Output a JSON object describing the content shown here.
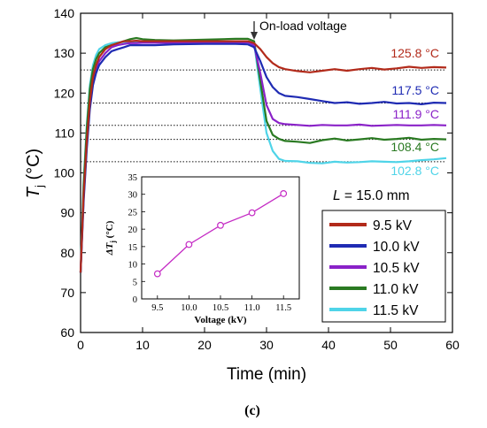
{
  "chart_data": [
    {
      "type": "line",
      "title": "",
      "xlabel": "Time (min)",
      "ylabel_main": "T",
      "ylabel_sub": "j",
      "ylabel_unit": " (°C)",
      "xlim": [
        0,
        60
      ],
      "ylim": [
        60,
        140
      ],
      "x_ticks": [
        0,
        10,
        20,
        30,
        40,
        50,
        60
      ],
      "y_ticks": [
        60,
        70,
        80,
        90,
        100,
        110,
        120,
        130,
        140
      ],
      "grid": false,
      "annotation_arrow": "On-load voltage",
      "annotation_arrow_x": 28,
      "length_label_prefix": "L",
      "length_label_value": " = 15.0 mm",
      "legend_position": "lower-right",
      "series": [
        {
          "name": "9.5 kV",
          "color": "#b22a1a",
          "steady_label": "125.8 °C",
          "steady_value": 125.8,
          "x": [
            0,
            0.5,
            1,
            1.5,
            2,
            2.5,
            3,
            4,
            5,
            6,
            7,
            8,
            9,
            10,
            12,
            15,
            20,
            25,
            27,
            28,
            29,
            30,
            31,
            32,
            33,
            35,
            37,
            39,
            41,
            43,
            45,
            47,
            49,
            51,
            53,
            55,
            57,
            59
          ],
          "y": [
            75,
            95,
            108,
            118,
            124,
            127,
            129,
            131,
            132,
            132.5,
            133,
            133,
            133.1,
            133,
            133,
            133,
            133,
            133,
            133,
            132.5,
            131,
            129,
            127.5,
            126.5,
            126,
            125.5,
            125.2,
            125.6,
            126,
            125.6,
            126,
            126.3,
            125.9,
            126.2,
            126.6,
            126.3,
            126.5,
            126.4
          ]
        },
        {
          "name": "10.0 kV",
          "color": "#1f2bb3",
          "steady_label": "117.5 °C",
          "steady_value": 117.5,
          "x": [
            0,
            0.5,
            1,
            1.5,
            2,
            2.5,
            3,
            4,
            5,
            6,
            7,
            8,
            9,
            10,
            12,
            15,
            20,
            25,
            27,
            28,
            29,
            30,
            31,
            32,
            33,
            35,
            37,
            39,
            41,
            43,
            45,
            47,
            49,
            51,
            53,
            55,
            57,
            59
          ],
          "y": [
            75,
            93,
            106,
            116,
            122,
            125,
            127,
            129,
            130.5,
            131,
            131.5,
            132,
            132,
            132,
            132,
            132.2,
            132.3,
            132.3,
            132.2,
            131.5,
            128,
            124,
            121.5,
            120,
            119.3,
            119,
            118.5,
            118,
            117.5,
            117.7,
            117.3,
            117.5,
            117.8,
            117.4,
            117.5,
            117.2,
            117.6,
            117.5
          ]
        },
        {
          "name": "10.5 kV",
          "color": "#8a22c8",
          "steady_label": "111.9 °C",
          "steady_value": 111.9,
          "x": [
            0,
            0.5,
            1,
            1.5,
            2,
            2.5,
            3,
            4,
            5,
            6,
            7,
            8,
            9,
            10,
            12,
            15,
            20,
            25,
            27,
            28,
            29,
            30,
            31,
            32,
            33,
            35,
            37,
            39,
            41,
            43,
            45,
            47,
            49,
            51,
            53,
            55,
            57,
            59
          ],
          "y": [
            75,
            94,
            107,
            117,
            123,
            126,
            128,
            130,
            131.5,
            132,
            132.3,
            132.5,
            132.5,
            132.6,
            132.6,
            132.6,
            132.7,
            132.7,
            132.7,
            132,
            125,
            117,
            113.5,
            112.5,
            112.2,
            112,
            111.8,
            112,
            111.9,
            111.9,
            112.1,
            111.8,
            111.9,
            112,
            111.9,
            111.9,
            112,
            111.9
          ]
        },
        {
          "name": "11.0 kV",
          "color": "#2a7a22",
          "steady_label": "108.4 °C",
          "steady_value": 108.4,
          "x": [
            0,
            0.5,
            1,
            1.5,
            2,
            2.5,
            3,
            4,
            5,
            6,
            7,
            8,
            9,
            10,
            12,
            15,
            20,
            25,
            27,
            28,
            29,
            30,
            31,
            32,
            33,
            35,
            37,
            39,
            41,
            43,
            45,
            47,
            49,
            51,
            53,
            55,
            57,
            59
          ],
          "y": [
            75,
            97,
            111,
            121,
            126,
            128.5,
            130,
            131.5,
            132,
            132.5,
            133,
            133.5,
            133.8,
            133.5,
            133.3,
            133.2,
            133.4,
            133.6,
            133.6,
            133,
            123,
            113,
            109.5,
            108.5,
            108,
            107.8,
            107.5,
            108.2,
            108.6,
            108.1,
            108.4,
            108.7,
            108.3,
            108.5,
            108.8,
            108.3,
            108.5,
            108.4
          ]
        },
        {
          "name": "11.5 kV",
          "color": "#4fd4e8",
          "steady_label": "102.8 °C",
          "steady_value": 102.8,
          "x": [
            0,
            0.5,
            1,
            1.5,
            2,
            2.5,
            3,
            4,
            5,
            6,
            7,
            8,
            9,
            10,
            12,
            15,
            20,
            25,
            27,
            28,
            29,
            30,
            31,
            32,
            33,
            35,
            37,
            39,
            41,
            43,
            45,
            47,
            49,
            51,
            53,
            55,
            57,
            59
          ],
          "y": [
            75,
            98,
            112,
            122,
            127,
            129.5,
            131,
            132,
            132.5,
            132.7,
            132.8,
            132.8,
            132.8,
            132.8,
            132.8,
            132.9,
            133,
            133,
            133,
            132.5,
            121,
            110,
            105.5,
            103.5,
            103,
            102.9,
            102.5,
            102.4,
            102.8,
            102.6,
            102.7,
            102.9,
            102.8,
            102.7,
            102.9,
            103.2,
            103.4,
            103.7
          ]
        }
      ]
    },
    {
      "type": "line",
      "title": "",
      "xlabel": "Voltage (kV)",
      "ylabel_main": "ΔT",
      "ylabel_sub": "j",
      "ylabel_unit": " (°C)",
      "xlim": [
        9.25,
        11.75
      ],
      "ylim": [
        0,
        35
      ],
      "x_ticks": [
        9.5,
        10.0,
        10.5,
        11.0,
        11.5
      ],
      "x_tick_labels": [
        "9.5",
        "10.0",
        "10.5",
        "11.0",
        "11.5"
      ],
      "y_ticks": [
        0,
        5,
        10,
        15,
        20,
        25,
        30,
        35
      ],
      "grid": false,
      "marker": "open-circle",
      "color": "#c42ac4",
      "x": [
        9.5,
        10.0,
        10.5,
        11.0,
        11.5
      ],
      "y": [
        7.2,
        15.6,
        21.1,
        24.7,
        30.2
      ]
    }
  ],
  "caption": "(c)"
}
